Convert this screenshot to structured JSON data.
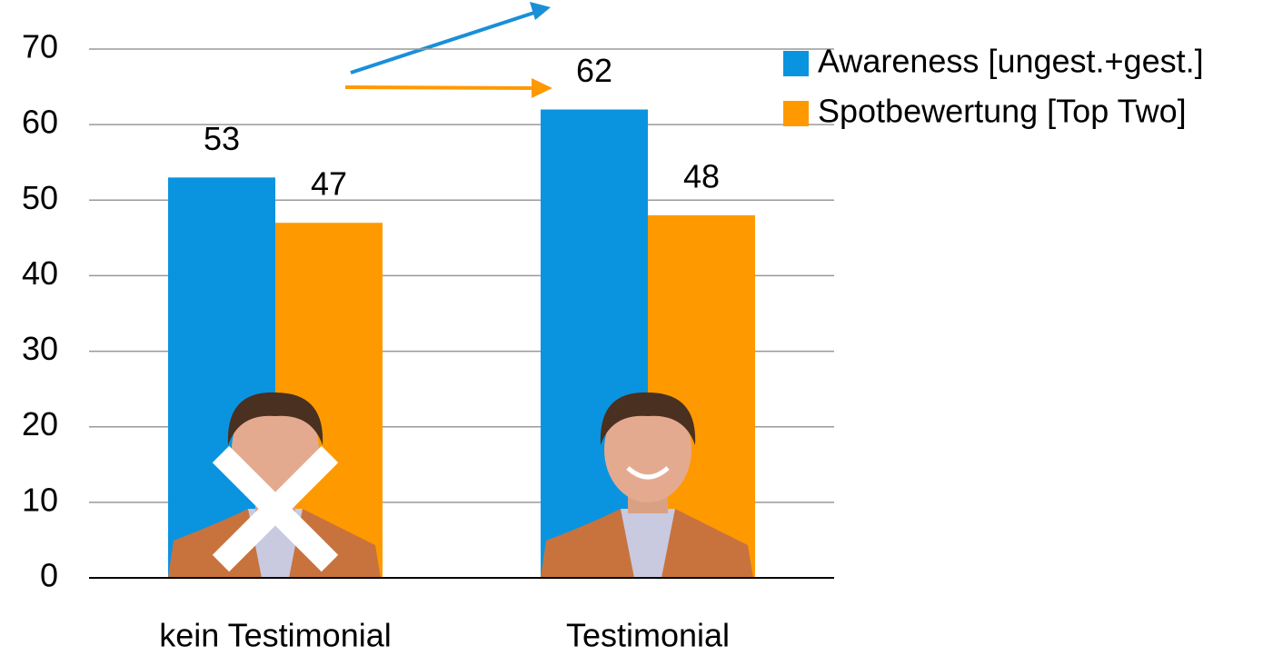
{
  "chart_data": {
    "type": "bar",
    "categories": [
      "kein Testimonial",
      "Testimonial"
    ],
    "series": [
      {
        "name": "Awareness [ungest.+gest.]",
        "color": "#0a94e0",
        "values": [
          53,
          62
        ]
      },
      {
        "name": "Spotbewertung [Top Two]",
        "color": "#ff9900",
        "values": [
          47,
          48
        ]
      }
    ],
    "ylim": [
      0,
      70
    ],
    "yticks": [
      0,
      10,
      20,
      30,
      40,
      50,
      60,
      70
    ],
    "grid": true,
    "legend": "top-right"
  }
}
